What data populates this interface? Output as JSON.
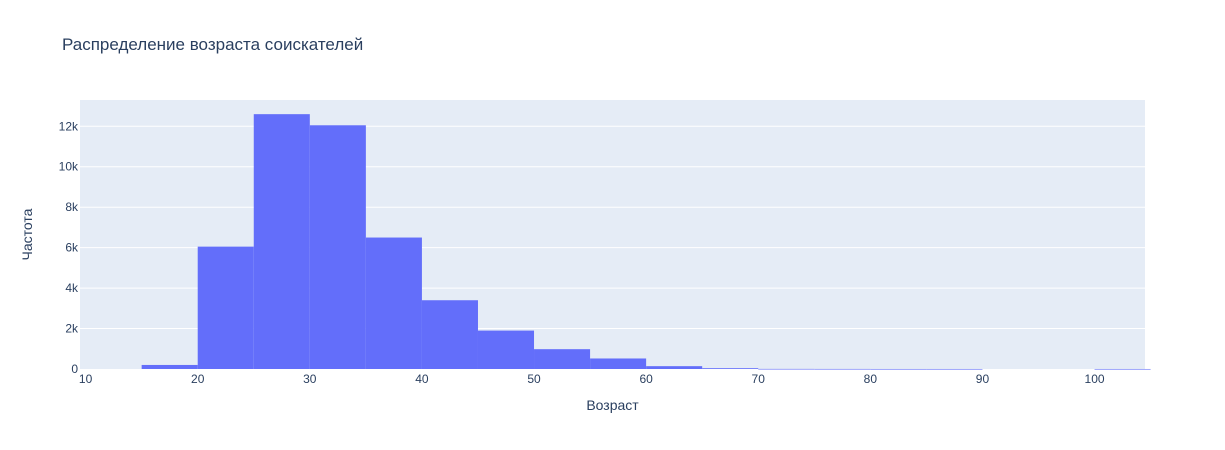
{
  "chart_data": {
    "type": "bar",
    "title": "Распределение возраста соискателей",
    "xlabel": "Возраст",
    "ylabel": "Частота",
    "bin_width": 5,
    "bins": [
      {
        "x_start": 10,
        "x_end": 15,
        "value": 0
      },
      {
        "x_start": 15,
        "x_end": 20,
        "value": 200
      },
      {
        "x_start": 20,
        "x_end": 25,
        "value": 6050
      },
      {
        "x_start": 25,
        "x_end": 30,
        "value": 12600
      },
      {
        "x_start": 30,
        "x_end": 35,
        "value": 12050
      },
      {
        "x_start": 35,
        "x_end": 40,
        "value": 6500
      },
      {
        "x_start": 40,
        "x_end": 45,
        "value": 3400
      },
      {
        "x_start": 45,
        "x_end": 50,
        "value": 1900
      },
      {
        "x_start": 50,
        "x_end": 55,
        "value": 980
      },
      {
        "x_start": 55,
        "x_end": 60,
        "value": 520
      },
      {
        "x_start": 60,
        "x_end": 65,
        "value": 140
      },
      {
        "x_start": 65,
        "x_end": 70,
        "value": 40
      },
      {
        "x_start": 70,
        "x_end": 75,
        "value": 5
      },
      {
        "x_start": 75,
        "x_end": 80,
        "value": 3
      },
      {
        "x_start": 80,
        "x_end": 85,
        "value": 1
      },
      {
        "x_start": 85,
        "x_end": 90,
        "value": 1
      },
      {
        "x_start": 90,
        "x_end": 95,
        "value": 0
      },
      {
        "x_start": 95,
        "x_end": 100,
        "value": 0
      },
      {
        "x_start": 100,
        "x_end": 105,
        "value": 1
      }
    ],
    "xlim": [
      9.5,
      104.5
    ],
    "ylim": [
      0,
      13300
    ],
    "x_ticks": [
      10,
      20,
      30,
      40,
      50,
      60,
      70,
      80,
      90,
      100
    ],
    "x_tick_labels": [
      "10",
      "20",
      "30",
      "40",
      "50",
      "60",
      "70",
      "80",
      "90",
      "100"
    ],
    "y_ticks": [
      0,
      2000,
      4000,
      6000,
      8000,
      10000,
      12000
    ],
    "y_tick_labels": [
      "0",
      "2k",
      "4k",
      "6k",
      "8k",
      "10k",
      "12k"
    ],
    "grid": true,
    "colors": {
      "bar": "#636efa",
      "plot_background": "#e5ecf6",
      "grid": "#ffffff",
      "text": "#2a3f5f"
    }
  }
}
